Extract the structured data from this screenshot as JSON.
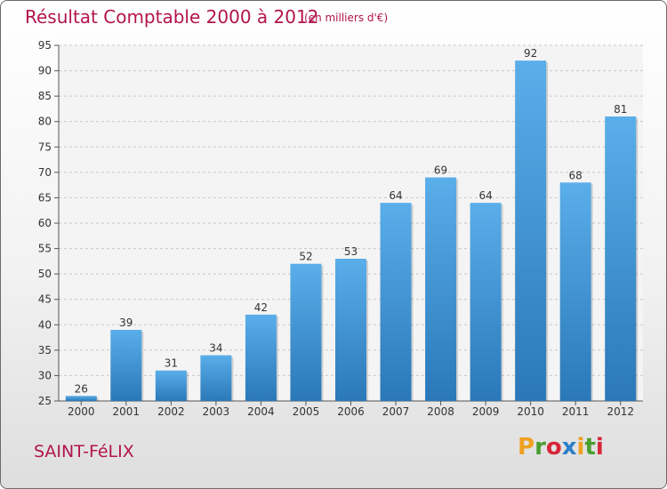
{
  "chart_data": {
    "type": "bar",
    "title": "Résultat Comptable 2000 à 2012",
    "subtitle": "(en milliers d'€)",
    "categories": [
      "2000",
      "2001",
      "2002",
      "2003",
      "2004",
      "2005",
      "2006",
      "2007",
      "2008",
      "2009",
      "2010",
      "2011",
      "2012"
    ],
    "values": [
      26,
      39,
      31,
      34,
      42,
      52,
      53,
      64,
      69,
      64,
      92,
      68,
      81
    ],
    "ylim": [
      25,
      95
    ],
    "yticks": [
      25,
      30,
      35,
      40,
      45,
      50,
      55,
      60,
      65,
      70,
      75,
      80,
      85,
      90,
      95
    ],
    "xlabel": "",
    "ylabel": "",
    "grid": true,
    "bar_color": "#3d8fd1"
  },
  "commune": "SAINT-FéLIX",
  "logo": {
    "text": "Proxiti",
    "letters": [
      {
        "ch": "P",
        "color": "#f0a020"
      },
      {
        "ch": "r",
        "color": "#4a9e2f"
      },
      {
        "ch": "o",
        "color": "#d8263a"
      },
      {
        "ch": "x",
        "color": "#2c7fc9"
      },
      {
        "ch": "i",
        "color": "#f0a020"
      },
      {
        "ch": "t",
        "color": "#4a9e2f"
      },
      {
        "ch": "i",
        "color": "#d8263a"
      }
    ]
  }
}
